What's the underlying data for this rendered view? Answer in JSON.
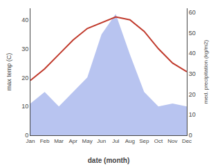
{
  "chart_data": {
    "type": "line",
    "xlabel": "date (month)",
    "ylabel": "max temp (C)",
    "y2label": "med. precipitation (kg/m2)",
    "categories": [
      "Jan",
      "Feb",
      "Mar",
      "Apr",
      "May",
      "Jun",
      "Jul",
      "Aug",
      "Sep",
      "Oct",
      "Nov",
      "Dec"
    ],
    "series": [
      {
        "type": "area",
        "color": "#b8c4f0",
        "values": [
          11,
          15,
          10,
          15,
          20,
          35,
          42,
          28,
          15,
          10,
          11,
          10
        ]
      },
      {
        "type": "line",
        "color": "#c0392b",
        "values": [
          19,
          23,
          28,
          33,
          37,
          39,
          41,
          40,
          36,
          30,
          25,
          22
        ]
      }
    ],
    "ylim": [
      0,
      44
    ],
    "yticks": [
      0,
      10,
      20,
      30,
      40
    ],
    "y2lim": [
      0,
      62
    ],
    "y2ticks": [
      0,
      10,
      20,
      30,
      40,
      50,
      60
    ],
    "grid": false
  }
}
